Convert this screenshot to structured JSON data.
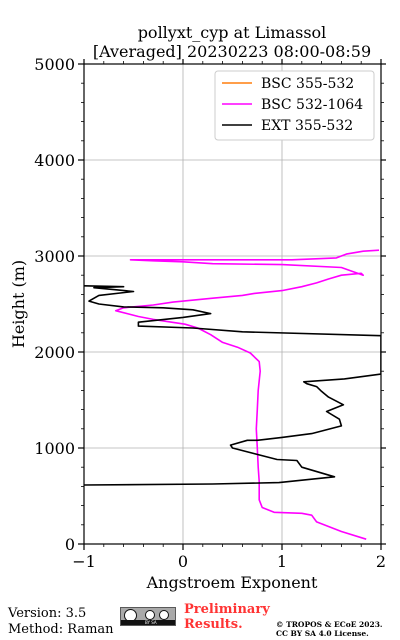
{
  "chart_data": {
    "type": "line",
    "title_line1": "pollyxt_cyp at Limassol",
    "title_line2": "[Averaged] 20230223 08:00-08:59",
    "xlabel": "Angstroem Exponent",
    "ylabel": "Height (m)",
    "xlim": [
      -1,
      2
    ],
    "ylim": [
      0,
      5000
    ],
    "xticks": [
      "−1",
      "0",
      "1",
      "2"
    ],
    "yticks": [
      "0",
      "1000",
      "2000",
      "3000",
      "4000",
      "5000"
    ],
    "grid": true,
    "legend_position": "top-right",
    "series": [
      {
        "name": "BSC 355-532",
        "color": "#ff7f0e",
        "points": []
      },
      {
        "name": "BSC 532-1064",
        "color": "#ff00ff",
        "points": [
          [
            1.85,
            50
          ],
          [
            1.6,
            130
          ],
          [
            1.35,
            230
          ],
          [
            1.3,
            300
          ],
          [
            1.2,
            320
          ],
          [
            0.92,
            330
          ],
          [
            0.8,
            380
          ],
          [
            0.77,
            460
          ],
          [
            0.77,
            650
          ],
          [
            0.76,
            800
          ],
          [
            0.75,
            1000
          ],
          [
            0.74,
            1200
          ],
          [
            0.75,
            1400
          ],
          [
            0.76,
            1600
          ],
          [
            0.78,
            1800
          ],
          [
            0.77,
            1900
          ],
          [
            0.68,
            1990
          ],
          [
            0.55,
            2050
          ],
          [
            0.4,
            2100
          ],
          [
            0.28,
            2180
          ],
          [
            0.15,
            2250
          ],
          [
            0.02,
            2290
          ],
          [
            -0.3,
            2340
          ],
          [
            -0.45,
            2370
          ],
          [
            -0.68,
            2430
          ],
          [
            -0.6,
            2460
          ],
          [
            -0.3,
            2490
          ],
          [
            -0.1,
            2520
          ],
          [
            0.3,
            2560
          ],
          [
            0.6,
            2590
          ],
          [
            0.72,
            2610
          ],
          [
            1.0,
            2640
          ],
          [
            1.2,
            2680
          ],
          [
            1.35,
            2720
          ],
          [
            1.47,
            2760
          ],
          [
            1.6,
            2800
          ],
          [
            1.8,
            2820
          ],
          [
            1.82,
            2800
          ],
          [
            1.6,
            2880
          ],
          [
            1.0,
            2910
          ],
          [
            0.3,
            2920
          ],
          [
            0.0,
            2940
          ],
          [
            -0.3,
            2950
          ],
          [
            -0.53,
            2960
          ],
          [
            1.1,
            2960
          ],
          [
            1.55,
            2980
          ],
          [
            1.65,
            3020
          ],
          [
            1.82,
            3050
          ],
          [
            1.98,
            3060
          ]
        ]
      },
      {
        "name": "EXT 355-532",
        "color": "#000000",
        "points": [
          [
            -1.0,
            615
          ],
          [
            0.3,
            625
          ],
          [
            0.97,
            640
          ],
          [
            1.53,
            700
          ],
          [
            1.2,
            800
          ],
          [
            1.15,
            870
          ],
          [
            0.95,
            880
          ],
          [
            0.5,
            1000
          ],
          [
            0.48,
            1030
          ],
          [
            0.65,
            1080
          ],
          [
            0.75,
            1080
          ],
          [
            1.0,
            1110
          ],
          [
            1.3,
            1150
          ],
          [
            1.6,
            1230
          ],
          [
            1.58,
            1300
          ],
          [
            1.45,
            1380
          ],
          [
            1.62,
            1450
          ],
          [
            1.47,
            1530
          ],
          [
            1.4,
            1590
          ],
          [
            1.35,
            1640
          ],
          [
            1.25,
            1670
          ],
          [
            1.22,
            1690
          ],
          [
            1.63,
            1720
          ],
          [
            2.0,
            1770
          ],
          [
            2.0,
            2170
          ],
          [
            0.6,
            2210
          ],
          [
            0.1,
            2250
          ],
          [
            -0.45,
            2270
          ],
          [
            -0.45,
            2310
          ],
          [
            0.0,
            2360
          ],
          [
            0.28,
            2400
          ],
          [
            0.1,
            2440
          ],
          [
            -0.2,
            2460
          ],
          [
            -0.6,
            2470
          ],
          [
            -0.85,
            2500
          ],
          [
            -0.95,
            2530
          ],
          [
            -0.85,
            2590
          ],
          [
            -0.5,
            2630
          ],
          [
            -0.7,
            2650
          ],
          [
            -0.9,
            2670
          ],
          [
            -0.6,
            2680
          ],
          [
            -1.0,
            2690
          ]
        ]
      }
    ]
  },
  "footer": {
    "version": "Version: 3.5",
    "method": "Method: Raman",
    "preliminary_line1": "Preliminary",
    "preliminary_line2": "Results.",
    "copyright": "© TROPOS & ECoE 2023.",
    "license": "CC BY SA 4.0 License.",
    "cc_badge_text": "BY SA"
  }
}
